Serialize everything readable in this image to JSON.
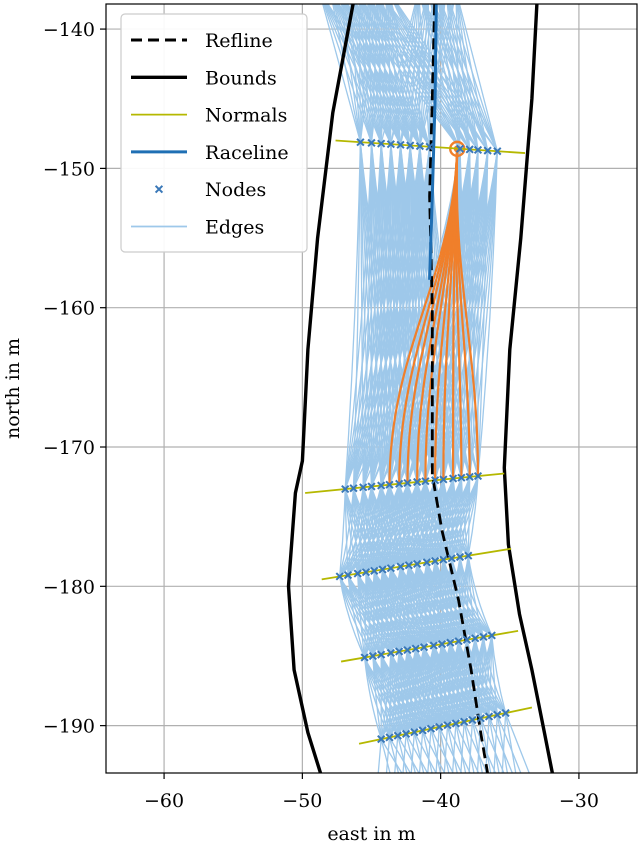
{
  "chart_data": {
    "type": "line",
    "xlabel": "east in m",
    "ylabel": "north in m",
    "xlim": [
      -64.2,
      -25.8
    ],
    "ylim": [
      -193.4,
      -138.2
    ],
    "x_ticks": [
      -60,
      -50,
      -40,
      -30
    ],
    "y_ticks": [
      -140,
      -150,
      -160,
      -170,
      -180,
      -190
    ],
    "x_tick_labels": [
      "−60",
      "−50",
      "−40",
      "−30"
    ],
    "y_tick_labels": [
      "−140",
      "−150",
      "−160",
      "−170",
      "−180",
      "−190"
    ],
    "grid": true,
    "legend_position": "top-left",
    "legend": [
      {
        "key": "refline",
        "label": "Refline"
      },
      {
        "key": "bounds",
        "label": "Bounds"
      },
      {
        "key": "normals",
        "label": "Normals"
      },
      {
        "key": "raceline",
        "label": "Raceline"
      },
      {
        "key": "nodes",
        "label": "Nodes"
      },
      {
        "key": "edges",
        "label": "Edges"
      }
    ],
    "colors": {
      "refline": "#000000",
      "bounds": "#000000",
      "normals": "#b5b800",
      "raceline": "#1f6fb4",
      "nodes": "#3a78b8",
      "edges": "#9ec8ea",
      "highlight": "#f07f2a",
      "grid": "#b0b0b0"
    },
    "series": {
      "refline": [
        [
          -40.4,
          -137
        ],
        [
          -40.6,
          -145
        ],
        [
          -40.8,
          -152
        ],
        [
          -40.6,
          -160
        ],
        [
          -40.6,
          -166
        ],
        [
          -40.6,
          -172
        ],
        [
          -39.9,
          -176
        ],
        [
          -38.7,
          -181
        ],
        [
          -37.8,
          -186
        ],
        [
          -37.1,
          -190.5
        ],
        [
          -36.5,
          -194
        ]
      ],
      "raceline": [
        [
          -40.3,
          -137
        ],
        [
          -40.4,
          -145
        ],
        [
          -40.6,
          -152
        ],
        [
          -40.8,
          -158
        ]
      ],
      "bound_left": [
        [
          -46.2,
          -137.5
        ],
        [
          -47.8,
          -146
        ],
        [
          -48.9,
          -155
        ],
        [
          -49.6,
          -163
        ],
        [
          -50.0,
          -171
        ],
        [
          -50.5,
          -173.3
        ],
        [
          -51.0,
          -180
        ],
        [
          -50.6,
          -186
        ],
        [
          -49.6,
          -190.5
        ],
        [
          -48.5,
          -194
        ]
      ],
      "bound_right": [
        [
          -33.0,
          -137.5
        ],
        [
          -33.4,
          -145
        ],
        [
          -34.2,
          -155
        ],
        [
          -35.0,
          -163
        ],
        [
          -35.4,
          -171.5
        ],
        [
          -35.1,
          -177
        ],
        [
          -34.3,
          -182
        ],
        [
          -33.4,
          -186
        ],
        [
          -32.5,
          -190.5
        ],
        [
          -31.8,
          -194
        ]
      ],
      "normals": [
        {
          "from": [
            -47.6,
            -148.0
          ],
          "to": [
            -33.9,
            -148.9
          ],
          "nodes": [
            -45.8,
            -45.0,
            -44.3,
            -43.6,
            -42.9,
            -42.2,
            -41.5,
            -40.8,
            -38.6,
            -37.9,
            -37.3,
            -36.6,
            -35.9
          ]
        },
        {
          "from": [
            -49.8,
            -173.3
          ],
          "to": [
            -35.4,
            -171.9
          ],
          "nodes": [
            -46.9,
            -46.3,
            -45.6,
            -45.0,
            -44.3,
            -43.7,
            -43.0,
            -42.4,
            -41.7,
            -41.1,
            -40.4,
            -39.8,
            -39.1,
            -38.5,
            -37.9,
            -37.3
          ]
        },
        {
          "from": [
            -48.6,
            -179.5
          ],
          "to": [
            -34.9,
            -177.3
          ],
          "nodes": [
            -47.3,
            -46.7,
            -46.0,
            -45.4,
            -44.8,
            -44.2,
            -43.6,
            -42.9,
            -42.3,
            -41.7,
            -41.0,
            -40.4,
            -39.8,
            -39.2,
            -38.6,
            -38.0
          ]
        },
        {
          "from": [
            -47.2,
            -185.4
          ],
          "to": [
            -34.4,
            -183.2
          ],
          "nodes": [
            -45.5,
            -44.9,
            -44.3,
            -43.6,
            -43.0,
            -42.4,
            -41.8,
            -41.2,
            -40.5,
            -39.9,
            -39.3,
            -38.7,
            -38.1,
            -37.5,
            -36.9,
            -36.3
          ]
        },
        {
          "from": [
            -45.9,
            -191.3
          ],
          "to": [
            -33.4,
            -188.7
          ],
          "nodes": [
            -44.3,
            -43.7,
            -43.1,
            -42.5,
            -41.9,
            -41.3,
            -40.7,
            -40.1,
            -39.5,
            -38.9,
            -38.3,
            -37.7,
            -37.1,
            -36.5,
            -35.9,
            -35.3
          ]
        }
      ],
      "highlight": {
        "origin": [
          -38.8,
          -148.6
        ],
        "targets": [
          -43.7,
          -43.0,
          -42.4,
          -41.7,
          -41.1,
          -40.4,
          -39.8,
          -39.1,
          -38.5,
          -37.9,
          -37.3
        ]
      }
    }
  }
}
